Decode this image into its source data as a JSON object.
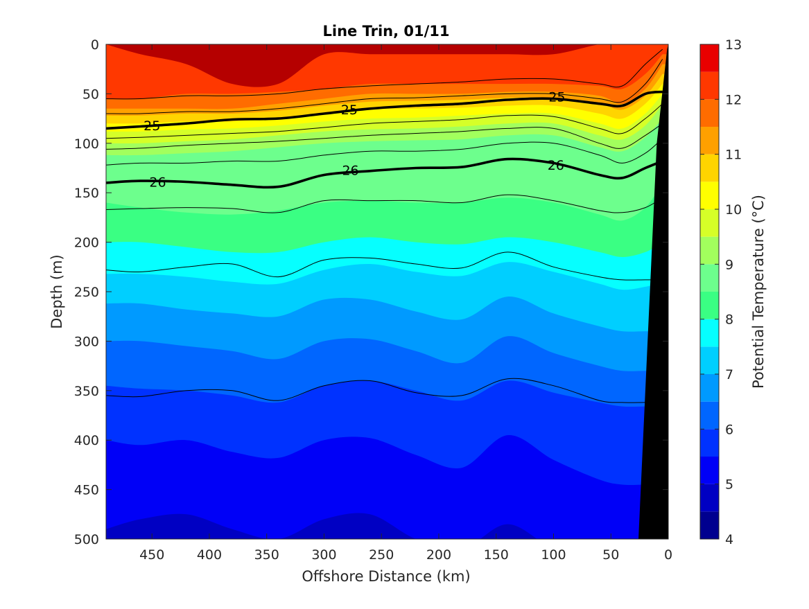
{
  "chart_data": {
    "type": "heatmap",
    "subtype": "filled-contour",
    "title": "Line Trin, 01/11",
    "xlabel": "Offshore Distance (km)",
    "ylabel": "Depth (m)",
    "colorbar_label": "Potential Temperature (°C)",
    "xlim": [
      490,
      0
    ],
    "x_reversed": true,
    "ylim": [
      0,
      500
    ],
    "y_reversed": true,
    "x_ticks": [
      450,
      400,
      350,
      300,
      250,
      200,
      150,
      100,
      50,
      0
    ],
    "y_ticks": [
      0,
      50,
      100,
      150,
      200,
      250,
      300,
      350,
      400,
      450,
      500
    ],
    "colorbar_ticks": [
      4,
      5,
      6,
      7,
      8,
      9,
      10,
      11,
      12,
      13
    ],
    "colorbar_range": [
      4,
      13
    ],
    "levels": [
      4,
      4.5,
      5,
      5.5,
      6,
      6.5,
      7,
      7.5,
      8,
      8.5,
      9,
      9.5,
      10,
      10.5,
      11,
      11.5,
      12,
      12.5,
      13
    ],
    "colormap": [
      "#00008f",
      "#0000c3",
      "#0000f7",
      "#0032ff",
      "#0066ff",
      "#009aff",
      "#00cfff",
      "#06ffff",
      "#3aff83",
      "#6dff8d",
      "#a2ff5d",
      "#d6ff28",
      "#ffff00",
      "#ffd400",
      "#ffa000",
      "#ff6c00",
      "#ff3800",
      "#e90000",
      "#b50000"
    ],
    "x_samples": [
      490,
      460,
      420,
      380,
      340,
      300,
      260,
      220,
      180,
      140,
      100,
      60,
      40,
      20,
      5
    ],
    "temperature_isotherm_depths": [
      {
        "level": 12.5,
        "depths": [
          null,
          10,
          20,
          40,
          40,
          10,
          10,
          10,
          10,
          10,
          10,
          null,
          null,
          null,
          null
        ]
      },
      {
        "level": 12,
        "depths": [
          55,
          55,
          50,
          50,
          48,
          45,
          40,
          40,
          40,
          40,
          40,
          42,
          45,
          30,
          10
        ]
      },
      {
        "level": 11.5,
        "depths": [
          65,
          65,
          65,
          65,
          60,
          55,
          50,
          50,
          50,
          48,
          48,
          52,
          60,
          45,
          20
        ]
      },
      {
        "level": 11,
        "depths": [
          72,
          72,
          70,
          70,
          67,
          62,
          58,
          57,
          56,
          54,
          54,
          60,
          66,
          52,
          30
        ]
      },
      {
        "level": 10.5,
        "depths": [
          80,
          80,
          78,
          78,
          74,
          70,
          66,
          65,
          64,
          62,
          62,
          70,
          75,
          60,
          40
        ]
      },
      {
        "level": 10,
        "depths": [
          88,
          88,
          86,
          85,
          82,
          78,
          75,
          74,
          72,
          70,
          70,
          80,
          85,
          70,
          50
        ]
      },
      {
        "level": 9.5,
        "depths": [
          100,
          100,
          98,
          96,
          92,
          88,
          86,
          85,
          83,
          80,
          80,
          92,
          96,
          82,
          60
        ]
      },
      {
        "level": 9,
        "depths": [
          112,
          112,
          110,
          108,
          104,
          100,
          98,
          97,
          96,
          92,
          92,
          104,
          108,
          94,
          75
        ]
      },
      {
        "level": 8.5,
        "depths": [
          160,
          165,
          170,
          172,
          168,
          160,
          158,
          160,
          160,
          155,
          160,
          172,
          178,
          165,
          140
        ]
      },
      {
        "level": 8,
        "depths": [
          200,
          200,
          205,
          210,
          210,
          200,
          195,
          200,
          202,
          195,
          200,
          210,
          215,
          210,
          200
        ]
      },
      {
        "level": 7.5,
        "depths": [
          232,
          232,
          235,
          240,
          242,
          228,
          222,
          230,
          234,
          220,
          230,
          242,
          248,
          245,
          240
        ]
      },
      {
        "level": 7,
        "depths": [
          262,
          262,
          268,
          272,
          275,
          258,
          258,
          270,
          278,
          255,
          272,
          285,
          290,
          290,
          290
        ]
      },
      {
        "level": 6.5,
        "depths": [
          300,
          300,
          305,
          310,
          318,
          300,
          298,
          310,
          322,
          295,
          312,
          325,
          330,
          330,
          330
        ]
      },
      {
        "level": 6,
        "depths": [
          345,
          348,
          350,
          355,
          362,
          345,
          340,
          350,
          360,
          340,
          352,
          362,
          366,
          366,
          366
        ]
      },
      {
        "level": 5.5,
        "depths": [
          400,
          405,
          400,
          412,
          418,
          400,
          398,
          415,
          428,
          395,
          420,
          440,
          445,
          445,
          445
        ]
      },
      {
        "level": 5,
        "depths": [
          490,
          480,
          475,
          490,
          500,
          480,
          475,
          500,
          510,
          485,
          510,
          520,
          520,
          520,
          520
        ]
      },
      {
        "level": 4.5,
        "depths": [
          540,
          520,
          500,
          530,
          545,
          540,
          540,
          545,
          545,
          540,
          545,
          545,
          545,
          545,
          545
        ]
      }
    ],
    "density_contours": [
      {
        "sigma": 24.5,
        "labeled": false,
        "depths": [
          55,
          55,
          52,
          52,
          50,
          45,
          42,
          40,
          38,
          35,
          35,
          40,
          42,
          20,
          5
        ]
      },
      {
        "sigma": 24.8,
        "labeled": false,
        "depths": [
          70,
          70,
          68,
          68,
          65,
          60,
          55,
          54,
          52,
          50,
          50,
          55,
          58,
          40,
          15
        ]
      },
      {
        "sigma": 25,
        "labeled": true,
        "depths": [
          85,
          83,
          80,
          76,
          75,
          70,
          65,
          62,
          60,
          56,
          55,
          60,
          62,
          50,
          48
        ]
      },
      {
        "sigma": 25.2,
        "labeled": false,
        "depths": [
          95,
          94,
          92,
          90,
          88,
          84,
          80,
          78,
          76,
          72,
          73,
          85,
          90,
          75,
          60
        ]
      },
      {
        "sigma": 25.4,
        "labeled": false,
        "depths": [
          106,
          105,
          102,
          100,
          98,
          95,
          92,
          90,
          88,
          85,
          85,
          100,
          105,
          92,
          80
        ]
      },
      {
        "sigma": 25.6,
        "labeled": false,
        "depths": [
          122,
          120,
          120,
          118,
          118,
          112,
          108,
          108,
          106,
          100,
          100,
          112,
          120,
          110,
          95
        ]
      },
      {
        "sigma": 26,
        "labeled": true,
        "depths": [
          140,
          138,
          139,
          142,
          144,
          132,
          128,
          125,
          124,
          116,
          120,
          132,
          135,
          125,
          118
        ]
      },
      {
        "sigma": 26.2,
        "labeled": false,
        "depths": [
          167,
          166,
          165,
          166,
          170,
          158,
          158,
          158,
          160,
          152,
          158,
          168,
          170,
          165,
          155
        ]
      },
      {
        "sigma": 26.4,
        "labeled": false,
        "depths": [
          228,
          230,
          225,
          222,
          235,
          218,
          216,
          222,
          226,
          210,
          225,
          235,
          238,
          238,
          238
        ]
      },
      {
        "sigma": 26.6,
        "labeled": false,
        "depths": [
          355,
          356,
          350,
          350,
          360,
          345,
          340,
          352,
          355,
          338,
          345,
          360,
          362,
          362,
          362
        ]
      }
    ],
    "contour_labels": [
      {
        "sigma": 25,
        "text": "25",
        "x": 450,
        "y": 82
      },
      {
        "sigma": 25,
        "text": "25",
        "x": 278,
        "y": 66
      },
      {
        "sigma": 25,
        "text": "25",
        "x": 97,
        "y": 53
      },
      {
        "sigma": 26,
        "text": "26",
        "x": 445,
        "y": 139
      },
      {
        "sigma": 26,
        "text": "26",
        "x": 277,
        "y": 127
      },
      {
        "sigma": 26,
        "text": "26",
        "x": 98,
        "y": 122
      }
    ],
    "bathymetry_mask": {
      "color": "#000000",
      "outline": [
        [
          0,
          0
        ],
        [
          0,
          500
        ],
        [
          26,
          500
        ],
        [
          10,
          100
        ],
        [
          1,
          5
        ]
      ]
    }
  }
}
